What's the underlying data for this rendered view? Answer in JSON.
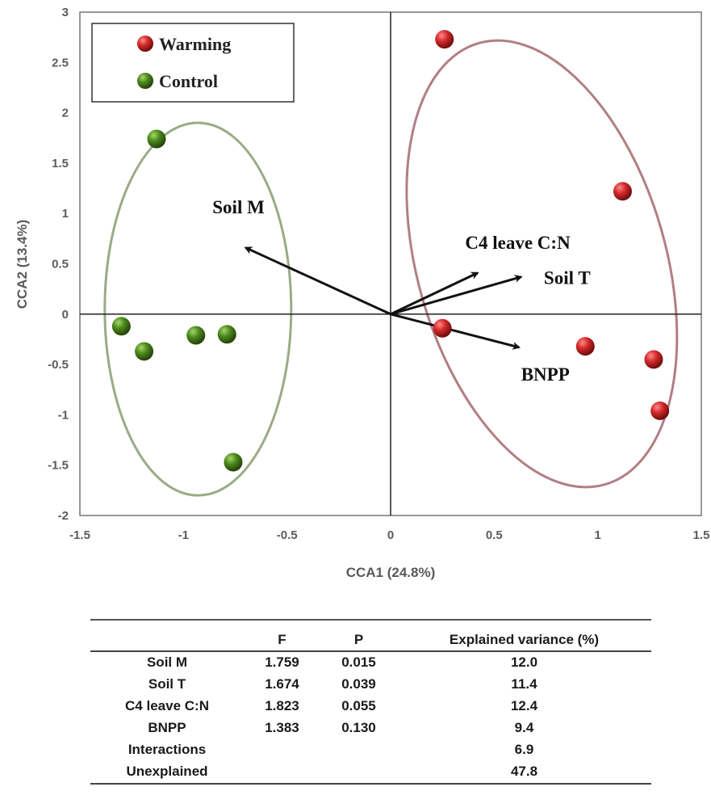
{
  "chart_data": {
    "type": "scatter",
    "xlabel": "CCA1 (24.8%)",
    "ylabel": "CCA2 (13.4%)",
    "xlim": [
      -1.5,
      1.5
    ],
    "ylim": [
      -2,
      3
    ],
    "xticks": [
      "-1.5",
      "-1",
      "-0.5",
      "0",
      "0.5",
      "1",
      "1.5"
    ],
    "yticks": [
      "3",
      "2.5",
      "2",
      "1.5",
      "1",
      "0.5",
      "0",
      "-0.5",
      "-1",
      "-1.5",
      "-2"
    ],
    "grid": false,
    "legend_position": "top-left",
    "series": [
      {
        "name": "Warming",
        "color": "#c0282a",
        "points": [
          [
            0.26,
            2.73
          ],
          [
            1.12,
            1.22
          ],
          [
            0.25,
            -0.14
          ],
          [
            0.94,
            -0.32
          ],
          [
            1.27,
            -0.45
          ],
          [
            1.3,
            -0.96
          ]
        ]
      },
      {
        "name": "Control",
        "color": "#4f8a1f",
        "points": [
          [
            -1.13,
            1.74
          ],
          [
            -1.3,
            -0.12
          ],
          [
            -1.19,
            -0.37
          ],
          [
            -0.94,
            -0.21
          ],
          [
            -0.79,
            -0.2
          ],
          [
            -0.76,
            -1.47
          ]
        ]
      }
    ],
    "ellipses": [
      {
        "group": "Control",
        "color": "#9aab86",
        "cx": -0.93,
        "cy": 0.05,
        "rx": 0.45,
        "ry": 1.85,
        "angle": 0
      },
      {
        "group": "Warming",
        "color": "#b17f82",
        "cx": 0.73,
        "cy": 0.5,
        "rx": 0.6,
        "ry": 2.28,
        "angle": -16
      }
    ],
    "vectors": [
      {
        "label": "Soil M",
        "x": -0.7,
        "y": 0.66,
        "label_x": -0.86,
        "label_y": 1.0
      },
      {
        "label": "C4 leave C:N",
        "x": 0.42,
        "y": 0.41,
        "label_x": 0.36,
        "label_y": 0.65
      },
      {
        "label": "Soil T",
        "x": 0.63,
        "y": 0.37,
        "label_x": 0.74,
        "label_y": 0.3
      },
      {
        "label": "BNPP",
        "x": 0.62,
        "y": -0.33,
        "label_x": 0.63,
        "label_y": -0.66
      }
    ]
  },
  "stats_table": {
    "headers": [
      "",
      "F",
      "P",
      "Explained variance (%)"
    ],
    "rows": [
      [
        "Soil M",
        "1.759",
        "0.015",
        "12.0"
      ],
      [
        "Soil T",
        "1.674",
        "0.039",
        "11.4"
      ],
      [
        "C4 leave C:N",
        "1.823",
        "0.055",
        "12.4"
      ],
      [
        "BNPP",
        "1.383",
        "0.130",
        "9.4"
      ],
      [
        "Interactions",
        "",
        "",
        "6.9"
      ],
      [
        "Unexplained",
        "",
        "",
        "47.8"
      ]
    ]
  }
}
